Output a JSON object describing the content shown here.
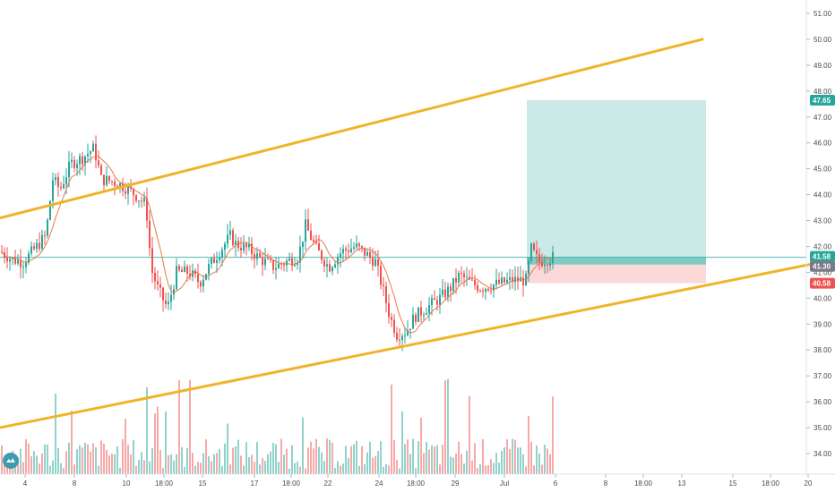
{
  "chart_data": {
    "type": "candlestick",
    "y_axis": {
      "min": 33.3,
      "max": 51.4,
      "ticks": [
        "51.00",
        "50.00",
        "49.00",
        "48.00",
        "47.00",
        "46.00",
        "45.00",
        "44.00",
        "43.00",
        "42.00",
        "41.00",
        "40.00",
        "39.00",
        "38.00",
        "37.00",
        "36.00",
        "35.00",
        "34.00"
      ]
    },
    "x_axis": {
      "ticks": [
        "4",
        "8",
        "10",
        "18:00",
        "15",
        "17",
        "18:00",
        "22",
        "24",
        "18:00",
        "29",
        "Jul",
        "6",
        "8",
        "18:00",
        "13",
        "15",
        "18:00",
        "20"
      ]
    },
    "price_tags": [
      {
        "label": "47.65",
        "value": 47.65,
        "color": "#26a69a"
      },
      {
        "label": "41.58",
        "value": 41.58,
        "color": "#26a69a"
      },
      {
        "label": "41.30",
        "value": 41.3,
        "color": "#787b86"
      },
      {
        "label": "40.58",
        "value": 40.58,
        "color": "#ef5350"
      }
    ],
    "trend_lines": [
      {
        "name": "upper-channel",
        "color": "#f0b429",
        "from": [
          0,
          43.1
        ],
        "to": [
          784,
          50.0
        ]
      },
      {
        "name": "lower-channel",
        "color": "#f0b429",
        "from": [
          0,
          35.0
        ],
        "to": [
          932,
          41.5
        ]
      }
    ],
    "long_position": {
      "entry": 41.3,
      "target": 47.65,
      "stop": 40.58,
      "profit_color": "#26a69a",
      "loss_color": "#ef5350"
    },
    "horizontal_line": {
      "value": 41.58,
      "color": "#26a69a"
    },
    "grid": false,
    "ma_color": "#e8784a",
    "up_color": "#26a69a",
    "down_color": "#ef5350"
  }
}
